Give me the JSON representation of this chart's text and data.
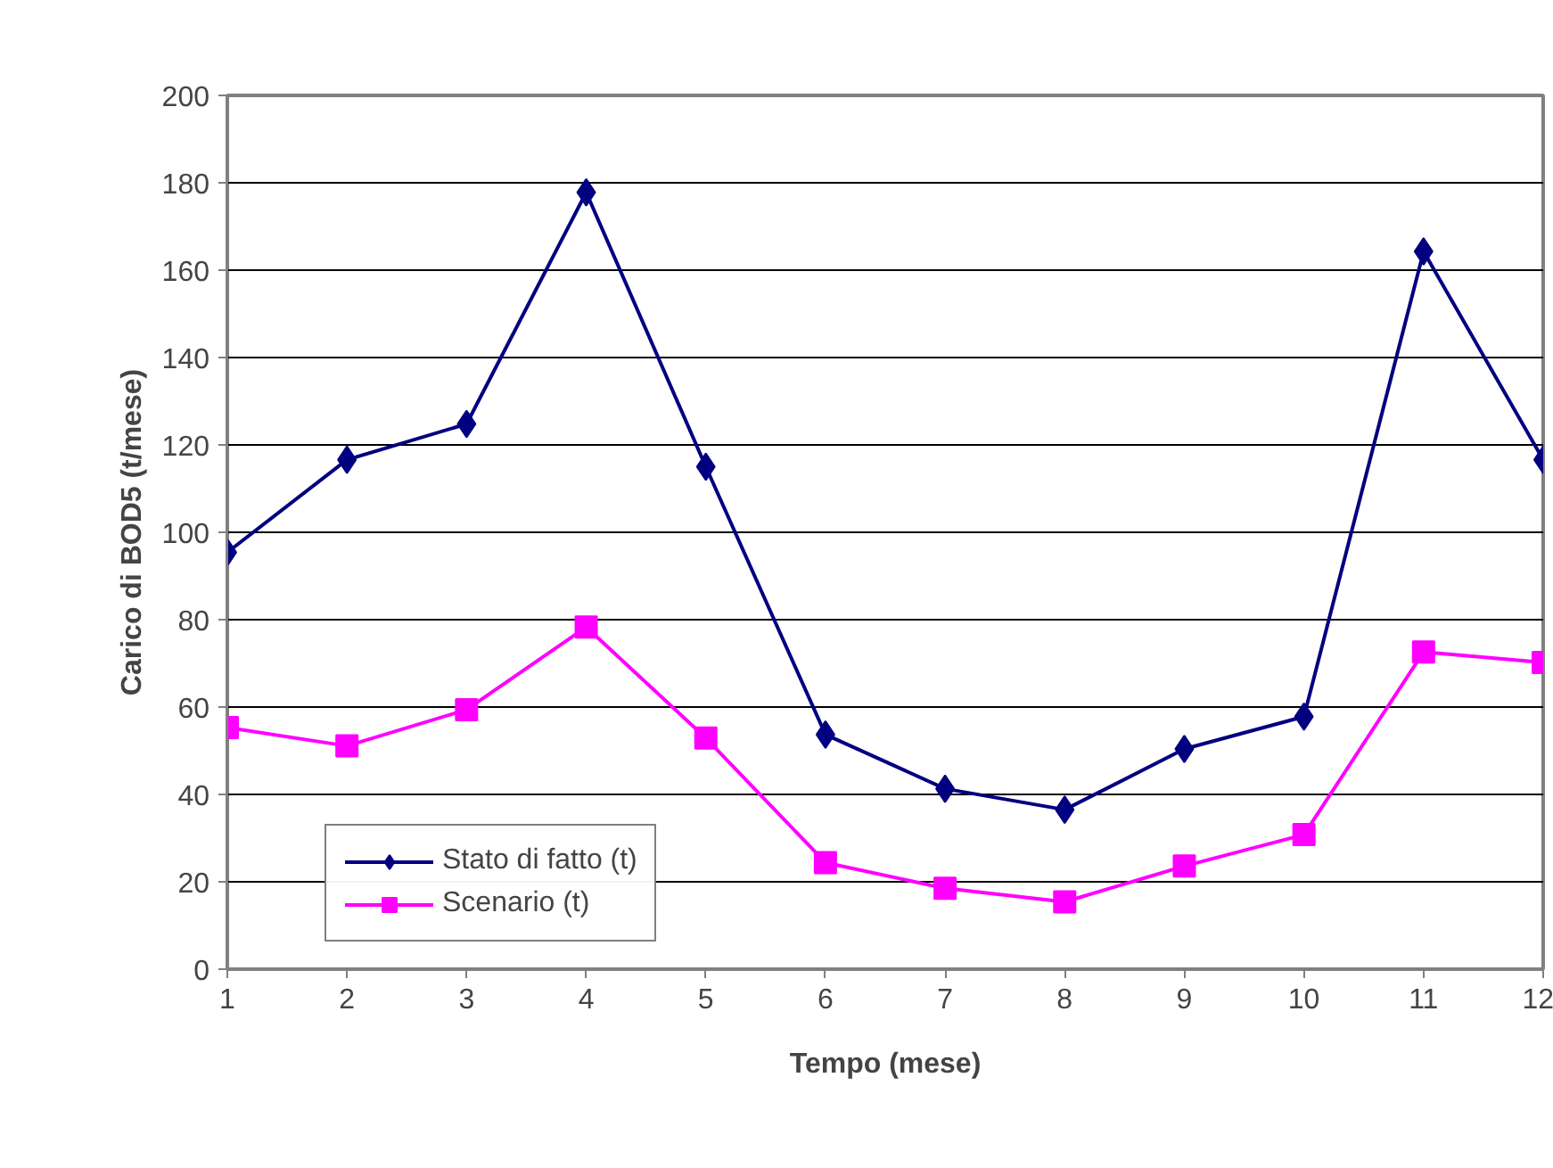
{
  "chart_data": {
    "type": "line",
    "xlabel": "Tempo (mese)",
    "ylabel": "Carico di BOD5 (t/mese)",
    "x": [
      1,
      2,
      3,
      4,
      5,
      6,
      7,
      8,
      9,
      10,
      11,
      12
    ],
    "xlim": [
      1,
      12
    ],
    "xticks": [
      1,
      2,
      3,
      4,
      5,
      6,
      7,
      8,
      9,
      10,
      11,
      12
    ],
    "ylim": [
      0,
      200
    ],
    "yticks": [
      0,
      20,
      40,
      60,
      80,
      100,
      120,
      140,
      160,
      180,
      200
    ],
    "grid": "y",
    "legend": "bottom left",
    "line_style": "solid",
    "series": [
      {
        "name": "Stato di fatto (t)",
        "color": "#000080",
        "marker": "diamond",
        "values": [
          95.4,
          116.6,
          124.8,
          177.8,
          115,
          53.7,
          41.3,
          36.5,
          50.4,
          57.8,
          164.3,
          116.6
        ]
      },
      {
        "name": "Scenario (t)",
        "color": "#ff00ff",
        "marker": "square",
        "values": [
          55.3,
          51.1,
          59.4,
          78.3,
          52.9,
          24.4,
          18.5,
          15.4,
          23.6,
          30.8,
          72.6,
          70.2
        ]
      }
    ]
  }
}
